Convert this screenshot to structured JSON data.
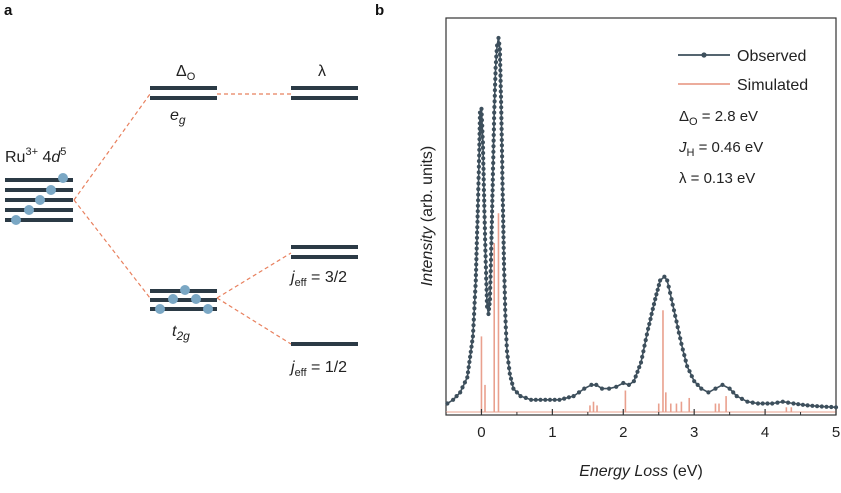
{
  "panel_a": {
    "label": "a",
    "ion_label": {
      "base": "Ru",
      "sup1": "3+",
      "mid": " 4",
      "d": "d",
      "sup2": "5"
    },
    "col_delta": {
      "base": "Δ",
      "sub": "O"
    },
    "col_lambda": "λ",
    "eg": {
      "e": "e",
      "g": "g"
    },
    "t2g": {
      "t": "t",
      "sub": "2g"
    },
    "jeff_32": {
      "j": "j",
      "sub": "eff",
      "rest": " = 3/2"
    },
    "jeff_12": {
      "j": "j",
      "sub": "eff",
      "rest": " = 1/2"
    },
    "colors": {
      "level": "#2b3a45",
      "electron": "#7aa7c4",
      "dashed": "#e8805e"
    }
  },
  "panel_b": {
    "label": "b"
  },
  "chart_data": {
    "type": "line",
    "xlabel_italic": "Energy Loss",
    "xlabel_unit": " (eV)",
    "ylabel_italic": "Intensity",
    "ylabel_unit": " (arb. units)",
    "xlim": [
      -0.5,
      5
    ],
    "ylim": [
      0,
      1.0
    ],
    "xticks": [
      0,
      1,
      2,
      3,
      4,
      5
    ],
    "xtick_labels": [
      "0",
      "1",
      "2",
      "3",
      "4",
      "5"
    ],
    "grid": false,
    "legend_position": "top-right",
    "series": [
      {
        "name": "Observed",
        "color": "#3d4f5c",
        "x": [
          -0.48,
          -0.4,
          -0.3,
          -0.2,
          -0.12,
          -0.08,
          -0.05,
          -0.03,
          -0.02,
          0.0,
          0.02,
          0.04,
          0.06,
          0.08,
          0.1,
          0.12,
          0.14,
          0.16,
          0.18,
          0.2,
          0.22,
          0.24,
          0.26,
          0.28,
          0.3,
          0.32,
          0.34,
          0.36,
          0.4,
          0.45,
          0.55,
          0.7,
          0.9,
          1.1,
          1.3,
          1.45,
          1.55,
          1.62,
          1.7,
          1.8,
          1.9,
          2.0,
          2.08,
          2.15,
          2.25,
          2.35,
          2.45,
          2.52,
          2.58,
          2.62,
          2.68,
          2.75,
          2.82,
          2.9,
          3.0,
          3.1,
          3.2,
          3.3,
          3.4,
          3.5,
          3.6,
          3.75,
          3.9,
          4.1,
          4.25,
          4.4,
          4.6,
          4.8,
          5.0
        ],
        "y": [
          0.02,
          0.03,
          0.05,
          0.09,
          0.2,
          0.35,
          0.55,
          0.7,
          0.8,
          0.81,
          0.72,
          0.55,
          0.4,
          0.28,
          0.26,
          0.3,
          0.45,
          0.62,
          0.8,
          0.92,
          0.98,
          1.0,
          0.97,
          0.8,
          0.58,
          0.38,
          0.24,
          0.16,
          0.1,
          0.06,
          0.04,
          0.03,
          0.03,
          0.03,
          0.04,
          0.06,
          0.07,
          0.07,
          0.06,
          0.06,
          0.065,
          0.075,
          0.07,
          0.08,
          0.13,
          0.22,
          0.3,
          0.35,
          0.36,
          0.35,
          0.3,
          0.24,
          0.18,
          0.12,
          0.08,
          0.06,
          0.05,
          0.06,
          0.07,
          0.06,
          0.04,
          0.025,
          0.02,
          0.02,
          0.025,
          0.02,
          0.015,
          0.012,
          0.01
        ]
      },
      {
        "name": "Simulated",
        "color": "#e9a08e",
        "peaks": [
          {
            "x": 0.0,
            "h": 0.2
          },
          {
            "x": 0.05,
            "h": 0.07
          },
          {
            "x": 0.18,
            "h": 0.45
          },
          {
            "x": 0.24,
            "h": 0.53
          },
          {
            "x": 1.53,
            "h": 0.015
          },
          {
            "x": 1.58,
            "h": 0.025
          },
          {
            "x": 1.63,
            "h": 0.015
          },
          {
            "x": 2.03,
            "h": 0.055
          },
          {
            "x": 2.5,
            "h": 0.02
          },
          {
            "x": 2.56,
            "h": 0.27
          },
          {
            "x": 2.6,
            "h": 0.05
          },
          {
            "x": 2.67,
            "h": 0.02
          },
          {
            "x": 2.75,
            "h": 0.02
          },
          {
            "x": 2.82,
            "h": 0.025
          },
          {
            "x": 2.93,
            "h": 0.035
          },
          {
            "x": 3.3,
            "h": 0.02
          },
          {
            "x": 3.35,
            "h": 0.02
          },
          {
            "x": 3.45,
            "h": 0.04
          },
          {
            "x": 4.3,
            "h": 0.01
          },
          {
            "x": 4.37,
            "h": 0.01
          }
        ]
      }
    ],
    "annotations": [
      {
        "base": "Δ",
        "sub": "O",
        "rest": " = 2.8 eV"
      },
      {
        "base": "J",
        "sub": "H",
        "rest": " = 0.46 eV",
        "italic": true
      },
      {
        "base": "λ",
        "sub": "",
        "rest": " = 0.13 eV"
      }
    ]
  }
}
